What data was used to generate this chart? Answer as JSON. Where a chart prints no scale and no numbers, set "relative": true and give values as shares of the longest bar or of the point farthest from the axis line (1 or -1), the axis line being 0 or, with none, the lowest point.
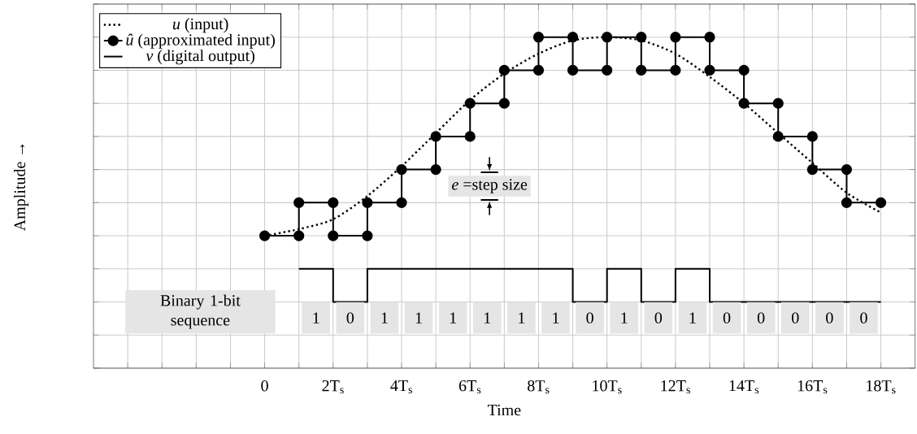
{
  "chart_data": {
    "type": "line",
    "relative": true,
    "xlabel": "Time",
    "ylabel": "Amplitude →",
    "xlim": [
      -5,
      19
    ],
    "xticks": [
      {
        "value": -4,
        "label": null
      },
      {
        "value": -3,
        "label": null
      },
      {
        "value": -2,
        "label": null
      },
      {
        "value": -1,
        "label": null
      },
      0,
      {
        "value": 1,
        "label": null
      },
      {
        "value": 2,
        "label": "2T$_{s}$"
      },
      {
        "value": 3,
        "label": null
      },
      {
        "value": 4,
        "label": "4T$_{s}$"
      },
      {
        "value": 5,
        "label": null
      },
      {
        "value": 6,
        "label": "6T$_{s}$"
      },
      {
        "value": 7,
        "label": null
      },
      {
        "value": 8,
        "label": "8T$_{s}$"
      },
      {
        "value": 9,
        "label": null
      },
      {
        "value": 10,
        "label": "10T$_{s}$"
      },
      {
        "value": 11,
        "label": null
      },
      {
        "value": 12,
        "label": "12T$_{s}$"
      },
      {
        "value": 13,
        "label": null
      },
      {
        "value": 14,
        "label": "14T$_{s}$"
      },
      {
        "value": 15,
        "label": null
      },
      {
        "value": 16,
        "label": "16T$_{s}$"
      },
      {
        "value": 17,
        "label": null
      },
      {
        "value": 18,
        "label": "18T$_{s}$"
      }
    ],
    "tick_labels": "x",
    "grid": true,
    "legend": "top left",
    "series": [
      {
        "name": "*u* (input)",
        "line_style": "dotted",
        "color": "#000000",
        "x": [
          0,
          1,
          2,
          3,
          4,
          5,
          6,
          7,
          8,
          9,
          10,
          11,
          12,
          13,
          14,
          15,
          16,
          17,
          18
        ],
        "values": [
          0.4,
          0.42,
          0.45,
          0.52,
          0.61,
          0.71,
          0.81,
          0.89,
          0.95,
          0.99,
          1.0,
          0.99,
          0.95,
          0.88,
          0.8,
          0.71,
          0.62,
          0.53,
          0.47
        ]
      },
      {
        "name": "*û* (approximated input)",
        "line_style": "solid",
        "marker": "circle",
        "color": "#000000",
        "x": [
          0,
          1,
          1,
          2,
          2,
          3,
          3,
          4,
          4,
          5,
          5,
          6,
          6,
          7,
          7,
          8,
          8,
          9,
          9,
          10,
          10,
          11,
          11,
          12,
          12,
          13,
          13,
          14,
          14,
          15,
          15,
          16,
          16,
          17,
          17,
          18
        ],
        "values": [
          0.4,
          0.4,
          0.5,
          0.5,
          0.4,
          0.4,
          0.5,
          0.5,
          0.6,
          0.6,
          0.7,
          0.7,
          0.8,
          0.8,
          0.9,
          0.9,
          1.0,
          1.0,
          0.9,
          0.9,
          1.0,
          1.0,
          0.9,
          0.9,
          1.0,
          1.0,
          0.9,
          0.9,
          0.8,
          0.8,
          0.7,
          0.7,
          0.6,
          0.6,
          0.5,
          0.5
        ]
      },
      {
        "name": "*v* (digital output)",
        "type": "step",
        "line_style": "solid",
        "color": "#000000",
        "x": [
          1,
          2,
          3,
          4,
          5,
          6,
          7,
          8,
          9,
          10,
          11,
          12,
          13,
          14,
          15,
          16,
          17,
          18
        ],
        "values": [
          0.3,
          0.2,
          0.3,
          0.3,
          0.3,
          0.3,
          0.3,
          0.3,
          0.2,
          0.3,
          0.2,
          0.3,
          0.2,
          0.2,
          0.2,
          0.2,
          0.2,
          0.2
        ]
      }
    ],
    "annotations": [
      "*e* =step size",
      "Binary 1-bit sequence",
      "1",
      "0",
      "1",
      "1",
      "1",
      "1",
      "1",
      "1",
      "0",
      "1",
      "0",
      "1",
      "0",
      "0",
      "0",
      "0",
      "0"
    ]
  }
}
